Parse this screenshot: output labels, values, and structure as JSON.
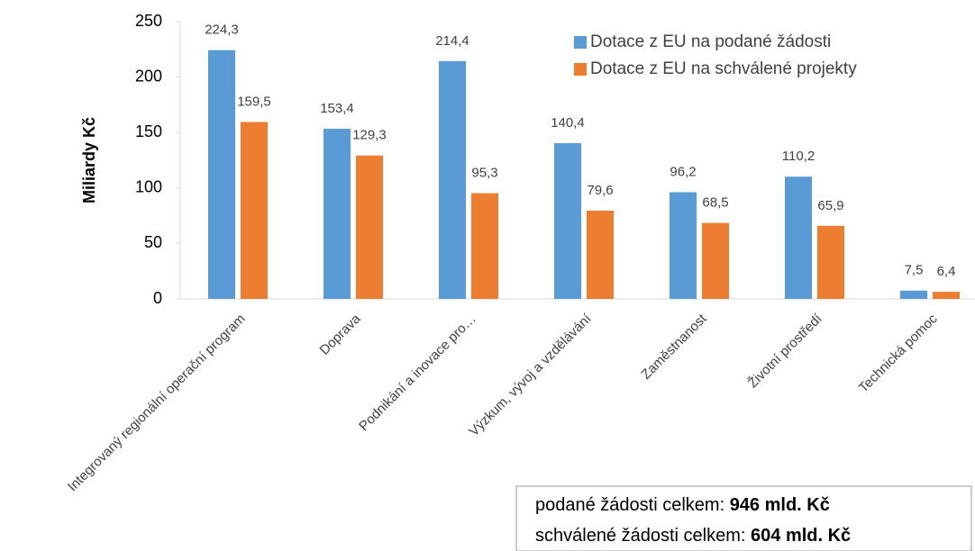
{
  "chart_data": {
    "type": "bar",
    "y_axis_label": "Miliardy Kč",
    "categories": [
      "Integrovaný regionální operační program",
      "Doprava",
      "Podnikání a inovace pro…",
      "Výzkum, vývoj a vzdělávání",
      "Zaměstnanost",
      "Životní prostředí",
      "Technická pomoc"
    ],
    "series": [
      {
        "name": "Dotace z EU na podané žádosti",
        "color": "#5b9bd5",
        "values": [
          224.3,
          153.4,
          214.4,
          140.4,
          96.2,
          110.2,
          7.5
        ],
        "value_labels": [
          "224,3",
          "153,4",
          "214,4",
          "140,4",
          "96,2",
          "110,2",
          "7,5"
        ]
      },
      {
        "name": "Dotace z EU na schválené projekty",
        "color": "#ed7d31",
        "values": [
          159.5,
          129.3,
          95.3,
          79.6,
          68.5,
          65.9,
          6.4
        ],
        "value_labels": [
          "159,5",
          "129,3",
          "95,3",
          "79,6",
          "68,5",
          "65,9",
          "6,4"
        ]
      }
    ],
    "ylim": [
      0,
      250
    ],
    "yticks": [
      0,
      50,
      100,
      150,
      200,
      250
    ],
    "grid": false,
    "legend": "top-right",
    "annotations": [
      {
        "text": "podané žádosti celkem: ",
        "bold": "946 mld. Kč"
      },
      {
        "text": "schválené žádosti celkem: ",
        "bold": "604 mld. Kč"
      }
    ]
  }
}
